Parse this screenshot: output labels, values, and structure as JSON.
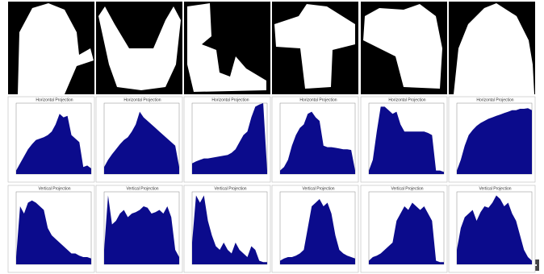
{
  "chart_data": [
    {
      "type": "area",
      "title": "Horizontal Projection",
      "color": "#0b0b8c",
      "ylim": [
        0,
        100
      ],
      "values": [
        5,
        15,
        25,
        35,
        42,
        48,
        50,
        52,
        55,
        60,
        70,
        85,
        80,
        82,
        55,
        50,
        45,
        10,
        12,
        8
      ]
    },
    {
      "type": "area",
      "title": "Horizontal Projection",
      "color": "#0b0b8c",
      "ylim": [
        0,
        100
      ],
      "values": [
        10,
        20,
        28,
        35,
        42,
        48,
        52,
        60,
        70,
        88,
        80,
        75,
        70,
        65,
        60,
        55,
        50,
        45,
        40,
        10
      ]
    },
    {
      "type": "area",
      "title": "Horizontal Projection",
      "color": "#0b0b8c",
      "ylim": [
        0,
        100
      ],
      "values": [
        15,
        18,
        20,
        22,
        22,
        23,
        24,
        25,
        26,
        27,
        30,
        35,
        45,
        55,
        60,
        80,
        95,
        98,
        100,
        5
      ]
    },
    {
      "type": "area",
      "title": "Horizontal Projection",
      "color": "#0b0b8c",
      "ylim": [
        0,
        100
      ],
      "values": [
        5,
        10,
        20,
        40,
        55,
        65,
        70,
        85,
        88,
        80,
        75,
        40,
        38,
        38,
        37,
        36,
        35,
        35,
        34,
        5
      ]
    },
    {
      "type": "area",
      "title": "Horizontal Projection",
      "color": "#0b0b8c",
      "ylim": [
        0,
        100
      ],
      "values": [
        5,
        20,
        60,
        95,
        95,
        90,
        85,
        88,
        70,
        60,
        60,
        60,
        60,
        60,
        60,
        58,
        55,
        5,
        5,
        3
      ]
    },
    {
      "type": "area",
      "title": "Horizontal Projection",
      "color": "#0b0b8c",
      "ylim": [
        0,
        100
      ],
      "values": [
        5,
        20,
        40,
        55,
        62,
        68,
        72,
        75,
        78,
        80,
        82,
        84,
        86,
        88,
        90,
        90,
        92,
        92,
        93,
        90
      ]
    },
    {
      "type": "area",
      "title": "Vertical Projection",
      "color": "#0b0b8c",
      "ylim": [
        0,
        100
      ],
      "values": [
        10,
        80,
        70,
        85,
        88,
        85,
        80,
        75,
        50,
        40,
        35,
        30,
        25,
        20,
        15,
        15,
        12,
        10,
        10,
        8
      ]
    },
    {
      "type": "area",
      "title": "Vertical Projection",
      "color": "#0b0b8c",
      "ylim": [
        0,
        100
      ],
      "values": [
        20,
        95,
        55,
        60,
        70,
        75,
        65,
        70,
        72,
        75,
        80,
        78,
        70,
        72,
        75,
        70,
        80,
        65,
        20,
        10
      ]
    },
    {
      "type": "area",
      "title": "Vertical Projection",
      "color": "#0b0b8c",
      "ylim": [
        0,
        100
      ],
      "values": [
        30,
        95,
        85,
        95,
        60,
        40,
        25,
        20,
        30,
        20,
        15,
        30,
        20,
        15,
        10,
        25,
        20,
        5,
        3,
        3
      ]
    },
    {
      "type": "area",
      "title": "Vertical Projection",
      "color": "#0b0b8c",
      "ylim": [
        0,
        100
      ],
      "values": [
        5,
        8,
        10,
        10,
        12,
        15,
        20,
        50,
        80,
        85,
        90,
        80,
        85,
        70,
        40,
        20,
        15,
        12,
        10,
        8
      ]
    },
    {
      "type": "area",
      "title": "Vertical Projection",
      "color": "#0b0b8c",
      "ylim": [
        0,
        100
      ],
      "values": [
        5,
        10,
        12,
        15,
        20,
        25,
        30,
        60,
        70,
        80,
        75,
        85,
        80,
        75,
        80,
        70,
        60,
        5,
        3,
        3
      ]
    },
    {
      "type": "area",
      "title": "Vertical Projection",
      "color": "#0b0b8c",
      "ylim": [
        0,
        100
      ],
      "values": [
        20,
        50,
        65,
        70,
        75,
        60,
        72,
        80,
        78,
        85,
        95,
        90,
        80,
        85,
        70,
        60,
        40,
        20,
        10,
        5
      ]
    }
  ]
}
